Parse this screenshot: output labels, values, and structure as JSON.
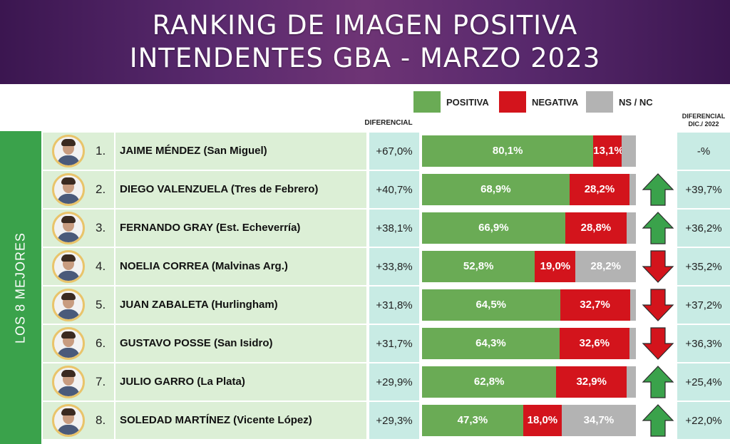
{
  "title_line1": "RANKING DE IMAGEN POSITIVA",
  "title_line2": "INTENDENTES GBA - MARZO 2023",
  "legend": {
    "positive": "POSITIVA",
    "negative": "NEGATIVA",
    "nsnc": "NS / NC"
  },
  "colors": {
    "positive": "#6aab55",
    "negative": "#d3141c",
    "nsnc": "#b3b3b3",
    "arrow_up": "#3aa24b",
    "arrow_down": "#d3141c",
    "band": "#3aa24b"
  },
  "col_diferencial": "DIFERENCIAL",
  "col_diferencial2_line1": "DIFERENCIAL",
  "col_diferencial2_line2": "DIC./ 2022",
  "side_label": "LOS 8 MEJORES",
  "chart_data": {
    "type": "bar",
    "orientation": "horizontal",
    "stacked": true,
    "title": "RANKING DE IMAGEN POSITIVA INTENDENTES GBA - MARZO 2023",
    "categories": [
      "JAIME MÉNDEZ (San Miguel)",
      "DIEGO VALENZUELA (Tres de Febrero)",
      "FERNANDO GRAY (Est. Echeverría)",
      "NOELIA CORREA (Malvinas Arg.)",
      "JUAN ZABALETA (Hurlingham)",
      "GUSTAVO POSSE (San Isidro)",
      "JULIO GARRO (La Plata)",
      "SOLEDAD MARTÍNEZ (Vicente López)"
    ],
    "series": [
      {
        "name": "POSITIVA",
        "values": [
          80.1,
          68.9,
          66.9,
          52.8,
          64.5,
          64.3,
          62.8,
          47.3
        ]
      },
      {
        "name": "NEGATIVA",
        "values": [
          13.1,
          28.2,
          28.8,
          19.0,
          32.7,
          32.6,
          32.9,
          18.0
        ]
      },
      {
        "name": "NS / NC",
        "values": [
          6.8,
          2.9,
          4.3,
          28.2,
          2.8,
          3.1,
          4.3,
          34.7
        ]
      }
    ],
    "xlim": [
      0,
      100
    ],
    "legend_position": "top"
  },
  "rows": [
    {
      "rank": "1.",
      "name": "JAIME MÉNDEZ (San Miguel)",
      "diff": "+67,0%",
      "diff2": "-%",
      "trend": "none",
      "pos": 80.1,
      "neg": 13.1,
      "ns": 6.8,
      "pos_label": "80,1%",
      "neg_label": "13,1%",
      "ns_label": ""
    },
    {
      "rank": "2.",
      "name": "DIEGO VALENZUELA (Tres de Febrero)",
      "diff": "+40,7%",
      "diff2": "+39,7%",
      "trend": "up",
      "pos": 68.9,
      "neg": 28.2,
      "ns": 2.9,
      "pos_label": "68,9%",
      "neg_label": "28,2%",
      "ns_label": ""
    },
    {
      "rank": "3.",
      "name": "FERNANDO GRAY (Est. Echeverría)",
      "diff": "+38,1%",
      "diff2": "+36,2%",
      "trend": "up",
      "pos": 66.9,
      "neg": 28.8,
      "ns": 4.3,
      "pos_label": "66,9%",
      "neg_label": "28,8%",
      "ns_label": ""
    },
    {
      "rank": "4.",
      "name": "NOELIA CORREA (Malvinas Arg.)",
      "diff": "+33,8%",
      "diff2": "+35,2%",
      "trend": "down",
      "pos": 52.8,
      "neg": 19.0,
      "ns": 28.2,
      "pos_label": "52,8%",
      "neg_label": "19,0%",
      "ns_label": "28,2%"
    },
    {
      "rank": "5.",
      "name": "JUAN ZABALETA (Hurlingham)",
      "diff": "+31,8%",
      "diff2": "+37,2%",
      "trend": "down",
      "pos": 64.5,
      "neg": 32.7,
      "ns": 2.8,
      "pos_label": "64,5%",
      "neg_label": "32,7%",
      "ns_label": ""
    },
    {
      "rank": "6.",
      "name": "GUSTAVO POSSE (San Isidro)",
      "diff": "+31,7%",
      "diff2": "+36,3%",
      "trend": "down",
      "pos": 64.3,
      "neg": 32.6,
      "ns": 3.1,
      "pos_label": "64,3%",
      "neg_label": "32,6%",
      "ns_label": ""
    },
    {
      "rank": "7.",
      "name": "JULIO GARRO (La Plata)",
      "diff": "+29,9%",
      "diff2": "+25,4%",
      "trend": "up",
      "pos": 62.8,
      "neg": 32.9,
      "ns": 4.3,
      "pos_label": "62,8%",
      "neg_label": "32,9%",
      "ns_label": ""
    },
    {
      "rank": "8.",
      "name": "SOLEDAD MARTÍNEZ (Vicente López)",
      "diff": "+29,3%",
      "diff2": "+22,0%",
      "trend": "up",
      "pos": 47.3,
      "neg": 18.0,
      "ns": 34.7,
      "pos_label": "47,3%",
      "neg_label": "18,0%",
      "ns_label": "34,7%"
    }
  ]
}
